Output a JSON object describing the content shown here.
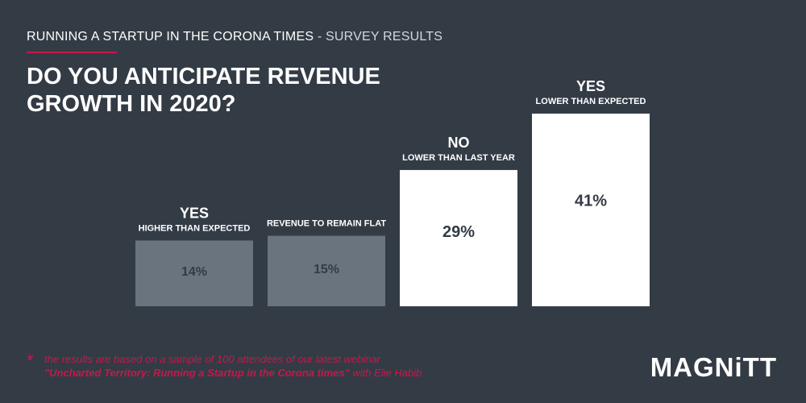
{
  "header": {
    "title": "RUNNING A STARTUP IN THE CORONA TIMES",
    "separator": " - ",
    "subtitle": "SURVEY RESULTS"
  },
  "question": "DO YOU ANTICIPATE REVENUE GROWTH IN 2020?",
  "colors": {
    "background": "#333b45",
    "bar_muted": "#6a747f",
    "bar_highlight": "#ffffff",
    "value_on_muted": "#333b45",
    "value_on_highlight": "#333b45",
    "accent": "#c8174b"
  },
  "chart_data": {
    "type": "bar",
    "categories": [
      "YES HIGHER THAN EXPECTED",
      "REVENUE TO REMAIN FLAT",
      "NO LOWER THAN LAST YEAR",
      "YES LOWER THAN EXPECTED"
    ],
    "values": [
      14,
      15,
      29,
      41
    ],
    "unit": "%",
    "labels": [
      {
        "main": "YES",
        "sub": "HIGHER THAN EXPECTED",
        "value_label": "14%",
        "highlight": false
      },
      {
        "main": "",
        "sub": "REVENUE TO REMAIN FLAT",
        "value_label": "15%",
        "highlight": false
      },
      {
        "main": "NO",
        "sub": "LOWER THAN LAST YEAR",
        "value_label": "29%",
        "highlight": true
      },
      {
        "main": "YES",
        "sub": "LOWER THAN EXPECTED",
        "value_label": "41%",
        "highlight": true
      }
    ],
    "ylim": [
      0,
      100
    ]
  },
  "footnote": {
    "star": "*",
    "line1": "the results are based on a sample of 100 attendees of our latest webinar",
    "line2_strong": "\"Uncharted Territory: Running a Startup in the Corona times\"",
    "line2_rest": " with Elie Habib"
  },
  "logo": "MAGNiTT"
}
